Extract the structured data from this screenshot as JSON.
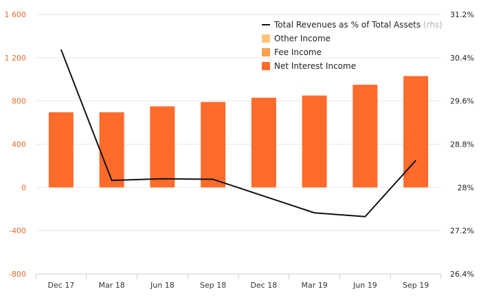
{
  "chart_data": {
    "type": "bar",
    "categories": [
      "Dec 17",
      "Mar 18",
      "Jun 18",
      "Sep 18",
      "Dec 18",
      "Mar 19",
      "Jun 19",
      "Sep 19"
    ],
    "series": [
      {
        "name": "Net Interest Income",
        "type": "bar",
        "axis": "left",
        "color": "#ff6b2b",
        "values": [
          695,
          695,
          750,
          790,
          830,
          850,
          950,
          1030
        ]
      },
      {
        "name": "Fee Income",
        "type": "bar",
        "axis": "left",
        "color": "#ffa04d",
        "values": [
          0,
          0,
          0,
          0,
          0,
          0,
          0,
          0
        ]
      },
      {
        "name": "Other Income",
        "type": "bar",
        "axis": "left",
        "color": "#ffc57a",
        "values": [
          0,
          0,
          0,
          0,
          0,
          0,
          0,
          0
        ]
      },
      {
        "name": "Total Revenues as % of Total Assets",
        "type": "line",
        "axis": "right",
        "color": "#111111",
        "values": [
          30.55,
          28.13,
          28.16,
          28.15,
          27.84,
          27.53,
          27.46,
          28.5
        ]
      }
    ],
    "y_left": {
      "ylim": [
        -800,
        1600
      ],
      "ticks": [
        -800,
        -400,
        0,
        400,
        800,
        1200,
        1600
      ],
      "tick_labels": [
        "-800",
        "-400",
        "0",
        "400",
        "800",
        "1 200",
        "1 600"
      ]
    },
    "y_right": {
      "ylim": [
        26.4,
        31.2
      ],
      "ticks": [
        26.4,
        27.2,
        28,
        28.8,
        29.6,
        30.4,
        31.2
      ],
      "tick_labels": [
        "26.4%",
        "27.2%",
        "28%",
        "28.8%",
        "29.6%",
        "30.4%",
        "31.2%"
      ]
    },
    "legend": {
      "placement": "top-right",
      "items": [
        {
          "label": "Total Revenues as % of Total Assets",
          "suffix": "(rhs)",
          "kind": "line",
          "color": "#111111"
        },
        {
          "label": "Other Income",
          "suffix": "",
          "kind": "box",
          "color": "#ffc57a"
        },
        {
          "label": "Fee Income",
          "suffix": "",
          "kind": "box",
          "color": "#ffa04d"
        },
        {
          "label": "Net Interest Income",
          "suffix": "",
          "kind": "box",
          "color": "#ff6b2b"
        }
      ]
    },
    "grid": true
  }
}
